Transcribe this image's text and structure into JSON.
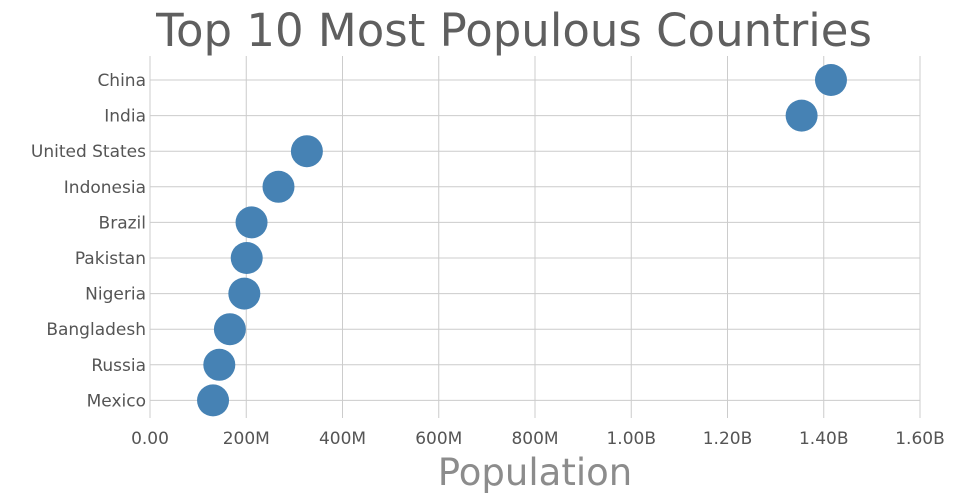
{
  "chart_data": {
    "type": "scatter",
    "title": "Top 10 Most Populous Countries",
    "xlabel": "Population",
    "ylabel": "",
    "categories": [
      "China",
      "India",
      "United States",
      "Indonesia",
      "Brazil",
      "Pakistan",
      "Nigeria",
      "Bangladesh",
      "Russia",
      "Mexico"
    ],
    "values": [
      1415000000,
      1354000000,
      326000000,
      267000000,
      211000000,
      201000000,
      196000000,
      166000000,
      144000000,
      131000000
    ],
    "xlim": [
      0,
      1600000000
    ],
    "x_ticks": [
      0,
      200000000,
      400000000,
      600000000,
      800000000,
      1000000000,
      1200000000,
      1400000000,
      1600000000
    ],
    "x_tick_labels": [
      "0.00",
      "200M",
      "400M",
      "600M",
      "800M",
      "1.00B",
      "1.20B",
      "1.40B",
      "1.60B"
    ],
    "grid": true,
    "marker_color": "#4682b4"
  }
}
